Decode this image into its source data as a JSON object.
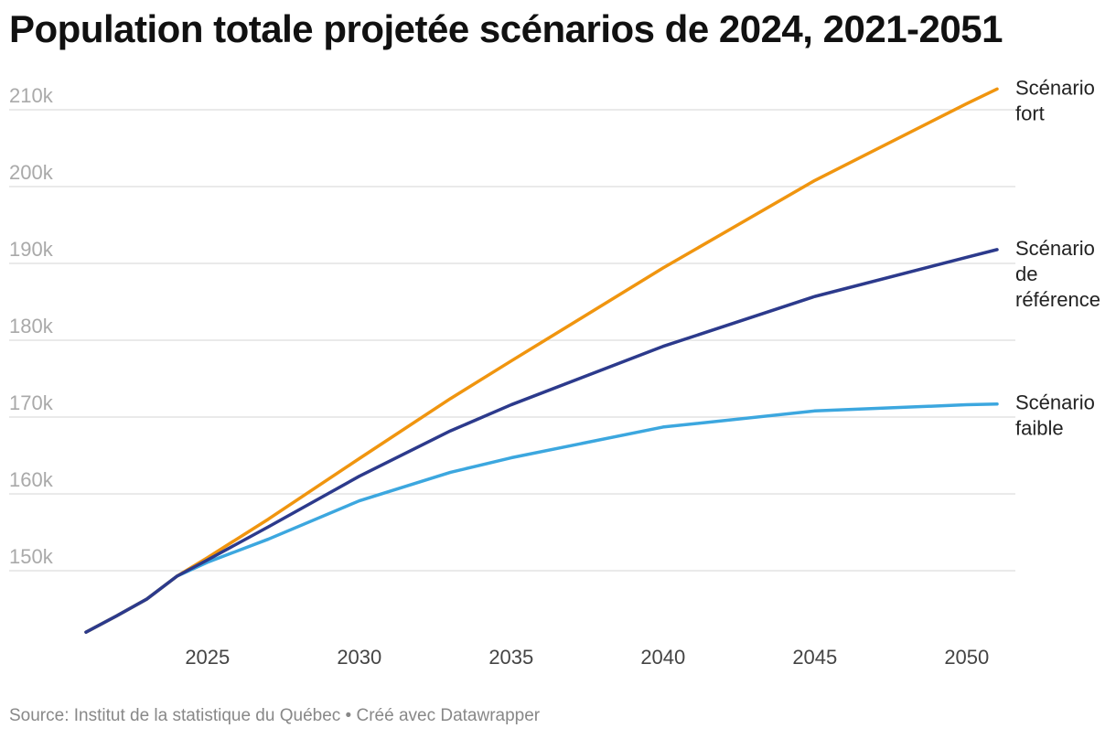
{
  "chart_data": {
    "type": "line",
    "title": "Population totale projetée scénarios de 2024, 2021-2051",
    "source": "Source: Institut de la statistique du Québec • Créé avec Datawrapper",
    "xlim": [
      2021,
      2051
    ],
    "ylim": [
      140000,
      212000
    ],
    "xticks": [
      2025,
      2030,
      2035,
      2040,
      2045,
      2050
    ],
    "yticks": [
      150000,
      160000,
      170000,
      180000,
      190000,
      200000,
      210000
    ],
    "ytick_labels": [
      "150k",
      "160k",
      "170k",
      "180k",
      "190k",
      "200k",
      "210k"
    ],
    "grid": true,
    "legend": "direct labels at line ends",
    "x": [
      2021,
      2022,
      2023,
      2024,
      2025,
      2027,
      2030,
      2033,
      2035,
      2040,
      2045,
      2050,
      2051
    ],
    "series": [
      {
        "name": "Scénario fort",
        "label_lines": [
          "Scénario",
          "fort"
        ],
        "color": "#f0950f",
        "values": [
          142000,
          144100,
          146300,
          149300,
          151700,
          156700,
          164600,
          172400,
          177300,
          189400,
          200800,
          210800,
          212700
        ]
      },
      {
        "name": "Scénario de référence",
        "label_lines": [
          "Scénario",
          "de",
          "référence"
        ],
        "color": "#2c3a8c",
        "values": [
          142000,
          144100,
          146300,
          149300,
          151400,
          155700,
          162300,
          168200,
          171600,
          179200,
          185700,
          190800,
          191800
        ]
      },
      {
        "name": "Scénario faible",
        "label_lines": [
          "Scénario",
          "faible"
        ],
        "color": "#3ca7df",
        "values": [
          142000,
          144100,
          146300,
          149300,
          151100,
          154100,
          159100,
          162800,
          164700,
          168700,
          170800,
          171600,
          171700
        ]
      }
    ]
  }
}
